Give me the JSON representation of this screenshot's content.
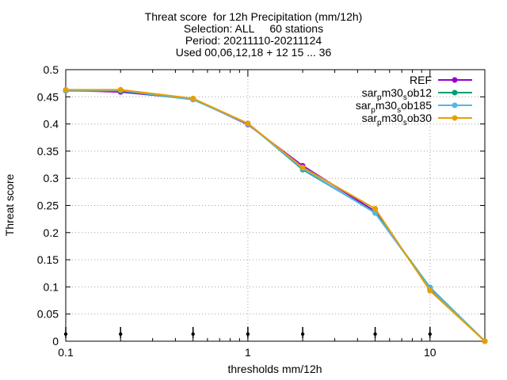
{
  "chart_data": {
    "type": "line",
    "title_lines": [
      "Threat score  for 12h Precipitation (mm/12h)",
      "Selection: ALL     60 stations",
      "Period: 20211110-20211124",
      "Used 00,06,12,18 + 12 15 ... 36"
    ],
    "xlabel": "thresholds mm/12h",
    "ylabel": "Threat score",
    "x_scale": "log",
    "xlim": [
      0.1,
      20
    ],
    "ylim": [
      0,
      0.5
    ],
    "x_ticks": [
      0.1,
      1,
      10
    ],
    "x_tick_labels": [
      "0.1",
      "1",
      "10"
    ],
    "y_ticks": [
      0,
      0.05,
      0.1,
      0.15,
      0.2,
      0.25,
      0.3,
      0.35,
      0.4,
      0.45,
      0.5
    ],
    "y_tick_labels": [
      "0",
      "0.05",
      "0.1",
      "0.15",
      "0.2",
      "0.25",
      "0.3",
      "0.35",
      "0.4",
      "0.45",
      "0.5"
    ],
    "grid": true,
    "legend_position": "top-right",
    "x": [
      0.1,
      0.2,
      0.5,
      1,
      2,
      5,
      10,
      20
    ],
    "series": [
      {
        "name": "REF",
        "label_parts": [
          [
            "REF",
            ""
          ]
        ],
        "color": "#9400d3",
        "values": [
          0.462,
          0.459,
          0.446,
          0.399,
          0.323,
          0.239,
          0.097,
          0.0
        ]
      },
      {
        "name": "sar_p m30_s ob12",
        "label_parts": [
          [
            "sar",
            ""
          ],
          [
            "p",
            "sub"
          ],
          [
            "m30",
            ""
          ],
          [
            "s",
            "sub"
          ],
          [
            "ob12",
            ""
          ]
        ],
        "color": "#009e73",
        "values": [
          0.461,
          0.461,
          0.445,
          0.401,
          0.316,
          0.237,
          0.099,
          0.0
        ]
      },
      {
        "name": "sar_p m30_s ob185",
        "label_parts": [
          [
            "sar",
            ""
          ],
          [
            "p",
            "sub"
          ],
          [
            "m30",
            ""
          ],
          [
            "s",
            "sub"
          ],
          [
            "ob185",
            ""
          ]
        ],
        "color": "#56b4e9",
        "values": [
          0.461,
          0.462,
          0.445,
          0.4,
          0.318,
          0.236,
          0.098,
          0.0
        ]
      },
      {
        "name": "sar_p m30_s ob30",
        "label_parts": [
          [
            "sar",
            ""
          ],
          [
            "p",
            "sub"
          ],
          [
            "m30",
            ""
          ],
          [
            "s",
            "sub"
          ],
          [
            "ob30",
            ""
          ]
        ],
        "color": "#e69f00",
        "values": [
          0.463,
          0.463,
          0.447,
          0.401,
          0.32,
          0.244,
          0.093,
          0.0
        ]
      }
    ]
  }
}
